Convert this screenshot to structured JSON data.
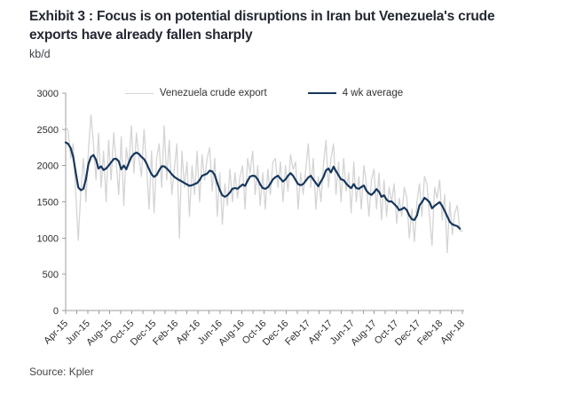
{
  "header": {
    "title_line1": "Exhibit 3 : Focus is on potential disruptions in Iran but Venezuela's crude",
    "title_line2": "exports have already fallen sharply",
    "units_label": "kb/d"
  },
  "legend": [
    {
      "label": "Venezuela crude export",
      "color": "#d4d4d4",
      "thickness": 1.5
    },
    {
      "label": "4 wk average",
      "color": "#17375d",
      "thickness": 2.5
    }
  ],
  "source": "Source: Kpler",
  "chart_data": {
    "type": "line",
    "title": "Venezuela crude exports, kb/d, weekly Apr-2015 to Apr-2018",
    "xlabel": "",
    "ylabel": "kb/d",
    "ylim": [
      0,
      3000
    ],
    "y_ticks": [
      0,
      500,
      1000,
      1500,
      2000,
      2500,
      3000
    ],
    "x_tick_labels": [
      "Apr-15",
      "Jun-15",
      "Aug-15",
      "Oct-15",
      "Dec-15",
      "Feb-16",
      "Apr-16",
      "Jun-16",
      "Aug-16",
      "Oct-16",
      "Dec-16",
      "Feb-17",
      "Apr-17",
      "Jun-17",
      "Aug-17",
      "Oct-17",
      "Dec-17",
      "Feb-18",
      "Apr-18"
    ],
    "x_minor_tick_every_months": 1,
    "x_label_every_months": 2,
    "months_span": 36,
    "grid": false,
    "legend_position": "top-center",
    "axis_color": "#9c9c9c",
    "tick_label_color": "#2e2e2e",
    "series": [
      {
        "name": "Venezuela crude export",
        "data_name": "series-venezuela-crude-export-line",
        "color": "#d4d4d4",
        "width": 1.3,
        "values": [
          2540,
          2480,
          2100,
          2300,
          1600,
          970,
          1650,
          2100,
          1500,
          2200,
          2700,
          2300,
          1800,
          2450,
          1700,
          2200,
          1500,
          2350,
          1800,
          2450,
          2050,
          1600,
          2400,
          1450,
          2250,
          2000,
          2550,
          1900,
          2450,
          2100,
          1850,
          2500,
          2000,
          1400,
          2200,
          1350,
          2100,
          2300,
          1700,
          2550,
          1800,
          2350,
          1600,
          1950,
          2300,
          1000,
          2200,
          1700,
          2050,
          1300,
          2000,
          1600,
          2200,
          1500,
          2150,
          1800,
          2100,
          2250,
          1650,
          2100,
          1300,
          1900,
          1190,
          1750,
          1450,
          1950,
          1500,
          1900,
          1550,
          1850,
          2000,
          1400,
          2100,
          1900,
          2200,
          1600,
          2000,
          1450,
          1900,
          1400,
          1950,
          1600,
          2050,
          2100,
          1700,
          2050,
          1500,
          2000,
          1650,
          2150,
          1950,
          2050,
          1400,
          1900,
          1600,
          1950,
          2300,
          1700,
          2100,
          1400,
          1850,
          1500,
          2000,
          2350,
          1700,
          2100,
          2300,
          1600,
          2050,
          1500,
          2100,
          1650,
          1900,
          1350,
          2050,
          1500,
          1850,
          1400,
          2000,
          1750,
          1300,
          1800,
          1950,
          1400,
          1900,
          1250,
          1800,
          1300,
          1700,
          1500,
          1750,
          1200,
          1550,
          1300,
          1700,
          1550,
          1000,
          1400,
          950,
          1500,
          1750,
          1300,
          1850,
          1750,
          1300,
          900,
          1700,
          1550,
          1800,
          1250,
          1600,
          800,
          1500,
          1050,
          1350,
          1450,
          1100,
          1100
        ]
      },
      {
        "name": "4 wk average",
        "data_name": "series-4wk-average-line",
        "color": "#17375d",
        "width": 2.2,
        "values": [
          2320,
          2300,
          2240,
          2120,
          1900,
          1700,
          1660,
          1680,
          1810,
          2020,
          2120,
          2145,
          2080,
          1960,
          1990,
          1940,
          1960,
          2000,
          2045,
          2090,
          2095,
          2060,
          1950,
          2000,
          1950,
          2040,
          2120,
          2160,
          2180,
          2160,
          2120,
          2090,
          2030,
          1950,
          1880,
          1845,
          1870,
          1935,
          1990,
          1990,
          1960,
          1925,
          1880,
          1845,
          1820,
          1800,
          1780,
          1760,
          1740,
          1720,
          1730,
          1745,
          1760,
          1800,
          1860,
          1875,
          1890,
          1930,
          1920,
          1870,
          1760,
          1660,
          1590,
          1570,
          1590,
          1630,
          1680,
          1690,
          1680,
          1710,
          1740,
          1720,
          1790,
          1850,
          1860,
          1855,
          1810,
          1740,
          1690,
          1680,
          1700,
          1750,
          1810,
          1840,
          1860,
          1820,
          1780,
          1810,
          1860,
          1895,
          1860,
          1800,
          1745,
          1730,
          1745,
          1790,
          1835,
          1860,
          1810,
          1760,
          1715,
          1780,
          1840,
          1935,
          1960,
          1905,
          1985,
          1925,
          1865,
          1810,
          1800,
          1755,
          1715,
          1690,
          1745,
          1690,
          1680,
          1705,
          1725,
          1655,
          1615,
          1595,
          1630,
          1675,
          1640,
          1570,
          1590,
          1530,
          1505,
          1505,
          1470,
          1435,
          1385,
          1400,
          1420,
          1385,
          1310,
          1260,
          1250,
          1310,
          1450,
          1495,
          1555,
          1530,
          1495,
          1410,
          1445,
          1470,
          1495,
          1445,
          1375,
          1300,
          1225,
          1190,
          1175,
          1165,
          1130
        ]
      }
    ]
  }
}
